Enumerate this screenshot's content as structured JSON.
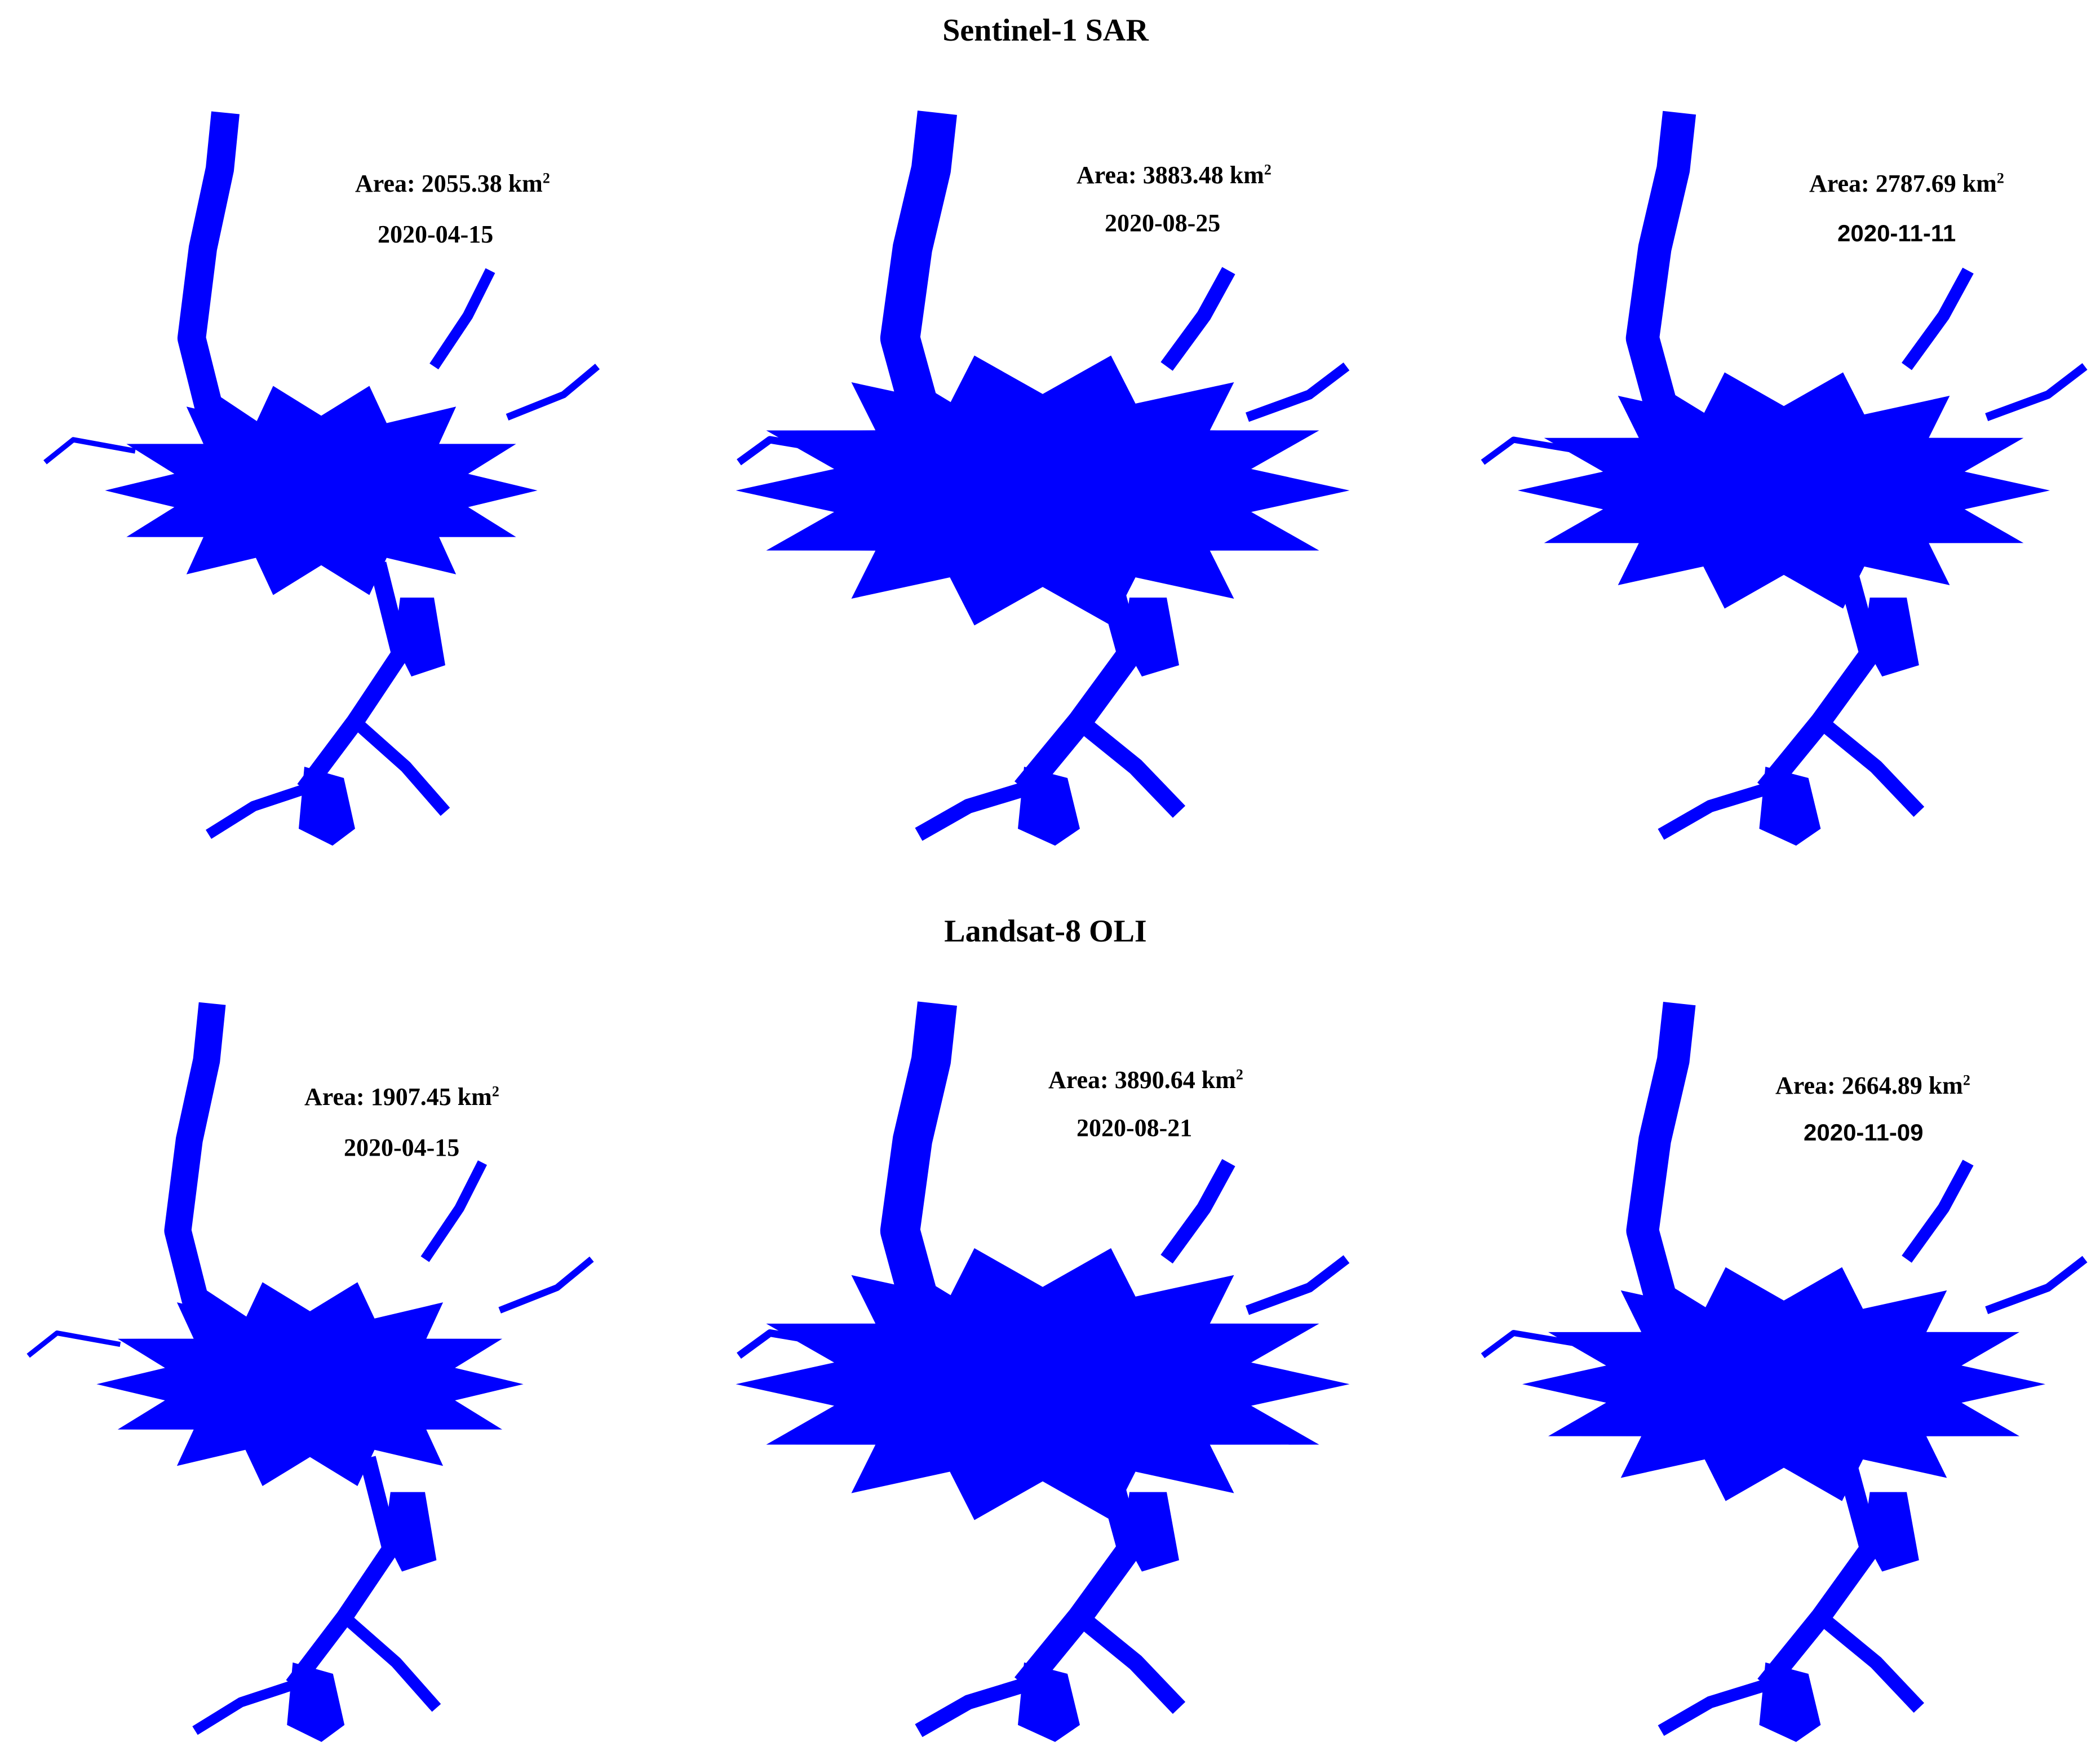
{
  "rows": [
    {
      "title": "Sentinel-1 SAR",
      "panels": [
        {
          "area_label": "Area: 2055.38 km",
          "area_sup": "2",
          "date": "2020-04-15",
          "area_km2": 2055.38
        },
        {
          "area_label": "Area: 3883.48 km",
          "area_sup": "2",
          "date": "2020-08-25",
          "area_km2": 3883.48
        },
        {
          "area_label": "Area: 2787.69 km",
          "area_sup": "2",
          "date": "2020-11-11",
          "area_km2": 2787.69
        }
      ]
    },
    {
      "title": "Landsat-8 OLI",
      "panels": [
        {
          "area_label": "Area: 1907.45 km",
          "area_sup": "2",
          "date": "2020-04-15",
          "area_km2": 1907.45
        },
        {
          "area_label": "Area: 3890.64 km",
          "area_sup": "2",
          "date": "2020-08-21",
          "area_km2": 3890.64
        },
        {
          "area_label": "Area: 2664.89 km",
          "area_sup": "2",
          "date": "2020-11-09",
          "area_km2": 2664.89
        }
      ]
    }
  ],
  "colors": {
    "water": "#0000ff",
    "background": "#ffffff",
    "text": "#000000"
  }
}
